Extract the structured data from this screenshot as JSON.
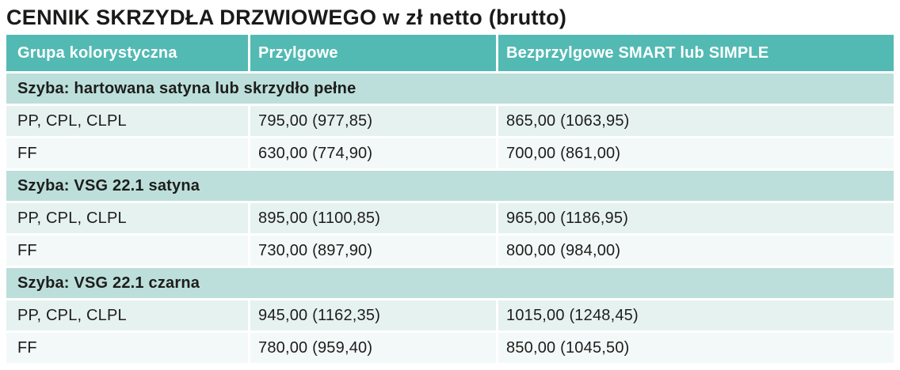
{
  "page": {
    "title": "CENNIK SKRZYDŁA DRZWIOWEGO w zł netto (brutto)"
  },
  "colors": {
    "header_bg": "#52bab3",
    "section_bg": "#bcdfdb",
    "row_odd_bg": "#e6f2f0",
    "row_even_bg": "#f3f9f8",
    "header_text": "#ffffff",
    "body_text": "#1d1d1b"
  },
  "table": {
    "columns": [
      "Grupa kolorystyczna",
      "Przylgowe",
      "Bezprzylgowe SMART lub SIMPLE"
    ],
    "sections": [
      {
        "label": "Szyba: hartowana satyna lub skrzydło pełne",
        "rows": [
          {
            "group": "PP, CPL, CLPL",
            "przylgowe": "795,00 (977,85)",
            "bezprzylgowe": "865,00 (1063,95)"
          },
          {
            "group": "FF",
            "przylgowe": "630,00 (774,90)",
            "bezprzylgowe": "700,00 (861,00)"
          }
        ]
      },
      {
        "label": "Szyba: VSG 22.1 satyna",
        "rows": [
          {
            "group": "PP, CPL, CLPL",
            "przylgowe": "895,00 (1100,85)",
            "bezprzylgowe": "965,00 (1186,95)"
          },
          {
            "group": "FF",
            "przylgowe": "730,00 (897,90)",
            "bezprzylgowe": "800,00 (984,00)"
          }
        ]
      },
      {
        "label": "Szyba: VSG 22.1 czarna",
        "rows": [
          {
            "group": "PP, CPL, CLPL",
            "przylgowe": "945,00 (1162,35)",
            "bezprzylgowe": "1015,00 (1248,45)"
          },
          {
            "group": "FF",
            "przylgowe": "780,00 (959,40)",
            "bezprzylgowe": "850,00 (1045,50)"
          }
        ]
      }
    ]
  }
}
